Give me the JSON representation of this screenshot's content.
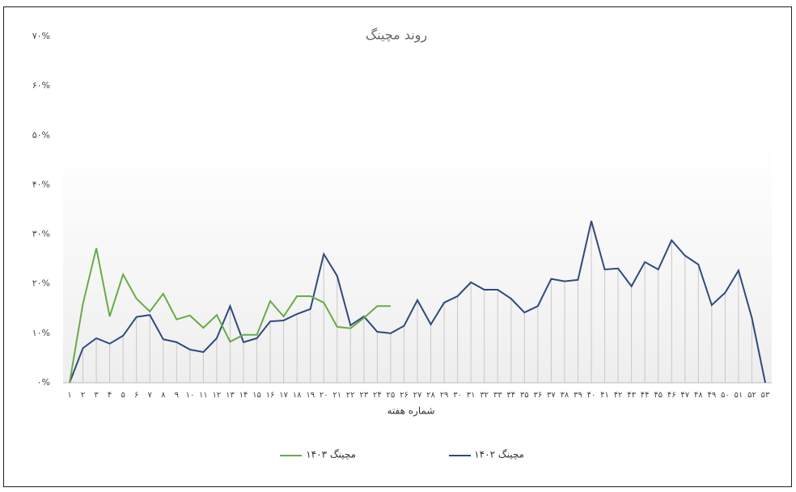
{
  "chart_data": {
    "type": "line",
    "title": "روند مچینگ",
    "x_label": "شماره هفته",
    "categories": [
      "۱",
      "۲",
      "۳",
      "۴",
      "۵",
      "۶",
      "۷",
      "۸",
      "۹",
      "۱۰",
      "۱۱",
      "۱۲",
      "۱۳",
      "۱۴",
      "۱۵",
      "۱۶",
      "۱۷",
      "۱۸",
      "۱۹",
      "۲۰",
      "۲۱",
      "۲۲",
      "۲۳",
      "۲۴",
      "۲۵",
      "۲۶",
      "۲۷",
      "۲۸",
      "۲۹",
      "۳۰",
      "۳۱",
      "۳۲",
      "۳۳",
      "۳۴",
      "۳۵",
      "۳۶",
      "۳۷",
      "۳۸",
      "۳۹",
      "۴۰",
      "۴۱",
      "۴۲",
      "۴۳",
      "۴۴",
      "۴۵",
      "۴۶",
      "۴۷",
      "۴۸",
      "۴۹",
      "۵۰",
      "۵۱",
      "۵۲",
      "۵۳"
    ],
    "series": [
      {
        "name": "مچینگ ۱۴۰۲",
        "color": "#2e4a7d",
        "values": [
          0,
          7,
          9,
          7.9,
          9.5,
          13.3,
          13.7,
          8.8,
          8.2,
          6.7,
          6.2,
          9,
          15.5,
          8.2,
          9,
          12.4,
          12.6,
          13.9,
          14.9,
          26,
          21.6,
          11.6,
          13.4,
          10.3,
          10,
          11.5,
          16.7,
          11.8,
          16.2,
          17.5,
          20.3,
          18.8,
          18.8,
          17,
          14.2,
          15.5,
          21,
          20.5,
          20.8,
          32.7,
          22.9,
          23.1,
          19.5,
          24.4,
          22.9,
          28.8,
          25.7,
          23.9,
          15.7,
          18.2,
          22.7,
          13.1,
          0
        ]
      },
      {
        "name": "مچینگ ۱۴۰۳",
        "color": "#6aaa45",
        "values": [
          0,
          16,
          27.2,
          13.4,
          21.9,
          17,
          14.4,
          18,
          12.8,
          13.6,
          11.1,
          13.7,
          8.3,
          9.7,
          9.7,
          16.5,
          13.4,
          17.5,
          17.5,
          16.2,
          11.3,
          11,
          13.1,
          15.5,
          15.5,
          null,
          null,
          null,
          null,
          null,
          null,
          null,
          null,
          null,
          null,
          null,
          null,
          null,
          null,
          null,
          null,
          null,
          null,
          null,
          null,
          null,
          null,
          null,
          null,
          null,
          null,
          null,
          null
        ]
      }
    ],
    "ylim": [
      0,
      70
    ],
    "yticks": [
      {
        "value": 0,
        "label": "۰%"
      },
      {
        "value": 10,
        "label": "۱۰%"
      },
      {
        "value": 20,
        "label": "۲۰%"
      },
      {
        "value": 30,
        "label": "۳۰%"
      },
      {
        "value": 40,
        "label": "۴۰%"
      },
      {
        "value": 50,
        "label": "۵۰%"
      },
      {
        "value": 60,
        "label": "۶۰%"
      },
      {
        "value": 70,
        "label": "۷۰%"
      }
    ],
    "grid": false,
    "drop_lines": true
  }
}
